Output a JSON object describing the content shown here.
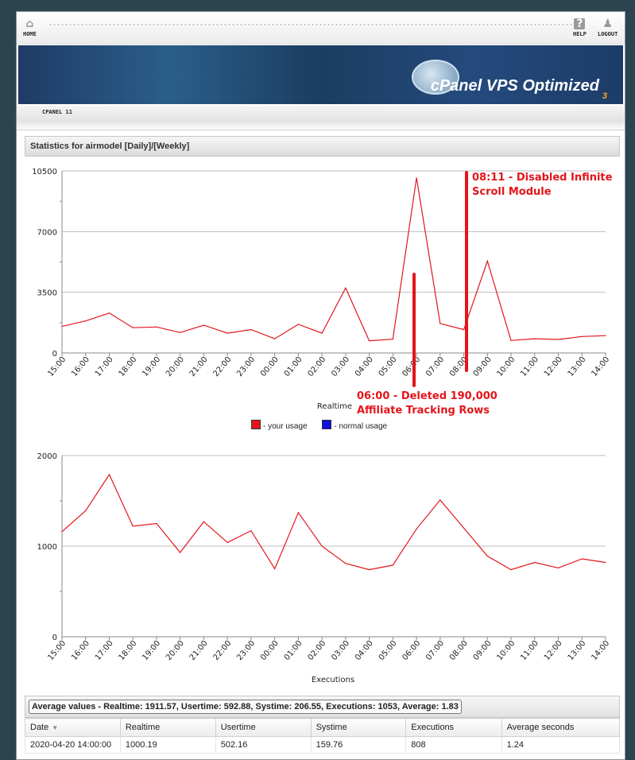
{
  "topbar": {
    "home_label": "HOME",
    "help_label": "HELP",
    "logout_label": "LOGOUT",
    "home_icon": "home-icon",
    "help_icon": "help-icon",
    "logout_icon": "logout-icon"
  },
  "banner": {
    "brand_cpanel": "cPanel",
    "brand_vps": " VPS Optimized",
    "brand_number": "3"
  },
  "breadcrumb": "CPANEL 11",
  "panel_title": "Statistics for airmodel [Daily]/[Weekly]",
  "legend": {
    "your_usage": "- your usage",
    "normal_usage": "- normal usage",
    "your_color": "#e3151b",
    "normal_color": "#1111dd"
  },
  "annotations": {
    "top_line1": "08:11 - Disabled Infinite",
    "top_line2": "Scroll Module",
    "bottom_line1": "06:00 - Deleted 190,000",
    "bottom_line2": "Affiliate Tracking Rows"
  },
  "chart_data": [
    {
      "type": "line",
      "xlabel": "Realtime",
      "ylabel": "",
      "x": [
        "15:00",
        "16:00",
        "17:00",
        "18:00",
        "19:00",
        "20:00",
        "21:00",
        "22:00",
        "23:00",
        "00:00",
        "01:00",
        "02:00",
        "03:00",
        "04:00",
        "05:00",
        "06:00",
        "07:00",
        "08:00",
        "09:00",
        "10:00",
        "11:00",
        "12:00",
        "13:00",
        "14:00"
      ],
      "series": [
        {
          "color": "#e3151b",
          "values": [
            1530,
            1850,
            2300,
            1460,
            1500,
            1180,
            1600,
            1140,
            1350,
            820,
            1650,
            1140,
            3750,
            700,
            800,
            10100,
            1700,
            1350,
            5300,
            720,
            820,
            780,
            950,
            1000
          ]
        }
      ],
      "yticks": [
        "0",
        "3500",
        "7000",
        "10500"
      ],
      "ylim": [
        0,
        10500
      ],
      "grid": true
    },
    {
      "type": "line",
      "xlabel": "Executions",
      "ylabel": "",
      "x": [
        "15:00",
        "16:00",
        "17:00",
        "18:00",
        "19:00",
        "20:00",
        "21:00",
        "22:00",
        "23:00",
        "00:00",
        "01:00",
        "02:00",
        "03:00",
        "04:00",
        "05:00",
        "06:00",
        "07:00",
        "08:00",
        "09:00",
        "10:00",
        "11:00",
        "12:00",
        "13:00",
        "14:00"
      ],
      "series": [
        {
          "color": "#e3151b",
          "values": [
            1160,
            1390,
            1790,
            1220,
            1250,
            930,
            1270,
            1040,
            1170,
            750,
            1370,
            1000,
            810,
            740,
            790,
            1190,
            1510,
            1200,
            890,
            740,
            820,
            760,
            860,
            820
          ]
        }
      ],
      "yticks": [
        "0",
        "1000",
        "2000"
      ],
      "ylim": [
        0,
        2000
      ],
      "grid": true
    }
  ],
  "averages": "Average values - Realtime: 1911.57, Usertime: 592.88, Systime: 206.55, Executions: 1053, Average: 1.83",
  "table": {
    "headers": [
      "Date",
      "Realtime",
      "Usertime",
      "Systime",
      "Executions",
      "Average seconds"
    ],
    "sort_icon": "sort-down-icon",
    "rows": [
      [
        "2020-04-20 14:00:00",
        "1000.19",
        "502.16",
        "159.76",
        "808",
        "1.24"
      ]
    ]
  }
}
